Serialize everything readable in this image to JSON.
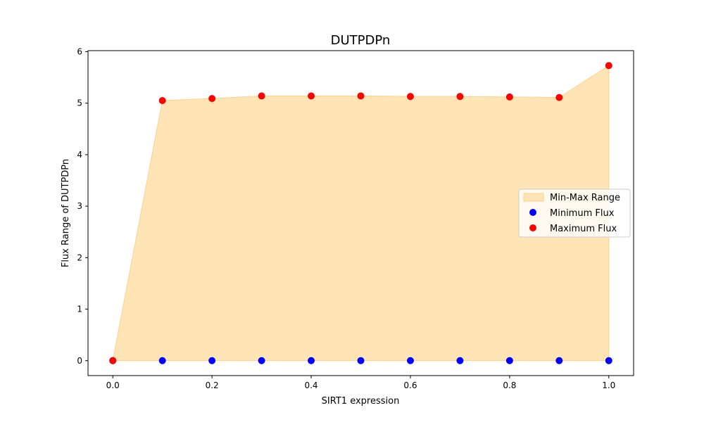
{
  "chart_data": {
    "type": "scatter",
    "title": "DUTPDPn",
    "xlabel": "SIRT1 expression",
    "ylabel": "Flux Range of DUTPDPn",
    "xlim": [
      -0.05,
      1.05
    ],
    "ylim": [
      -0.29,
      6.02
    ],
    "xticks": [
      0.0,
      0.2,
      0.4,
      0.6,
      0.8,
      1.0
    ],
    "xtick_labels": [
      "0.0",
      "0.2",
      "0.4",
      "0.6",
      "0.8",
      "1.0"
    ],
    "yticks": [
      0,
      1,
      2,
      3,
      4,
      5,
      6
    ],
    "ytick_labels": [
      "0",
      "1",
      "2",
      "3",
      "4",
      "5",
      "6"
    ],
    "x": [
      0.0,
      0.1,
      0.2,
      0.3,
      0.4,
      0.5,
      0.6,
      0.7,
      0.8,
      0.9,
      1.0
    ],
    "series": [
      {
        "name": "Minimum Flux",
        "color": "#0000ff",
        "values": [
          0,
          0,
          0,
          0,
          0,
          0,
          0,
          0,
          0,
          0,
          0
        ]
      },
      {
        "name": "Maximum Flux",
        "color": "#ff0000",
        "values": [
          0,
          5.05,
          5.09,
          5.14,
          5.14,
          5.14,
          5.13,
          5.13,
          5.12,
          5.11,
          5.73
        ]
      }
    ],
    "fill": {
      "name": "Min-Max Range",
      "color": "#ffe4b5",
      "edge_color": "#ffd08a"
    },
    "grid": false,
    "legend_position": "center-right"
  }
}
